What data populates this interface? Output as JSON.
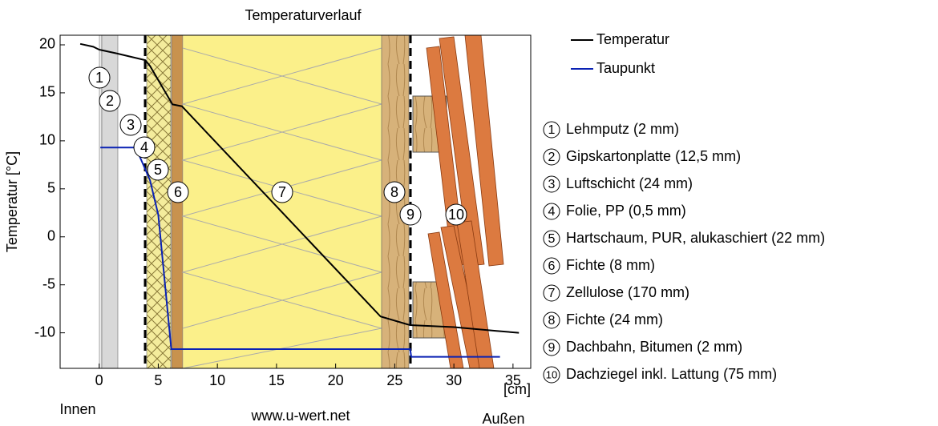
{
  "chart_data": {
    "type": "line",
    "title": "Temperaturverlauf",
    "xlabel": "[cm]",
    "ylabel": "Temperatur [°C]",
    "xlim": [
      -3.3,
      36.5
    ],
    "ylim": [
      -13.7,
      21
    ],
    "xticks": [
      0,
      5,
      10,
      15,
      20,
      25,
      30,
      35
    ],
    "yticks": [
      -10,
      -5,
      0,
      5,
      10,
      15,
      20
    ],
    "series": [
      {
        "name": "Temperatur",
        "color": "#000000",
        "x": [
          -1.6,
          -0.5,
          0,
          1.5,
          3.9,
          4.3,
          6.2,
          7,
          23.8,
          26.3,
          30,
          33.6,
          35.5
        ],
        "values": [
          20.1,
          19.8,
          19.5,
          19.1,
          18.4,
          17.8,
          13.8,
          13.6,
          -8.3,
          -9.2,
          -9.4,
          -9.8,
          -10
        ]
      },
      {
        "name": "Taupunkt",
        "color": "#0a22b4",
        "x": [
          0.1,
          3.1,
          4.3,
          5,
          6.1,
          26.3,
          26.4,
          33.9
        ],
        "values": [
          9.3,
          9.3,
          5.9,
          2.3,
          -11.7,
          -11.7,
          -12.5,
          -12.5
        ]
      }
    ],
    "annotations": [
      "1",
      "2",
      "3",
      "4",
      "5",
      "6",
      "7",
      "8",
      "9",
      "10"
    ],
    "layers": [
      "Lehmputz (2 mm)",
      "Gipskartonplatte (12,5 mm)",
      "Luftschicht (24 mm)",
      "Folie, PP (0,5 mm)",
      "Hartschaum, PUR, alukaschiert (22 mm)",
      "Fichte (8 mm)",
      "Zellulose (170 mm)",
      "Fichte (24 mm)",
      "Dachbahn, Bitumen (2 mm)",
      "Dachziegel inkl. Lattung (75 mm)"
    ],
    "inside": "Innen",
    "outside": "Außen",
    "source": "www.u-wert.net"
  }
}
